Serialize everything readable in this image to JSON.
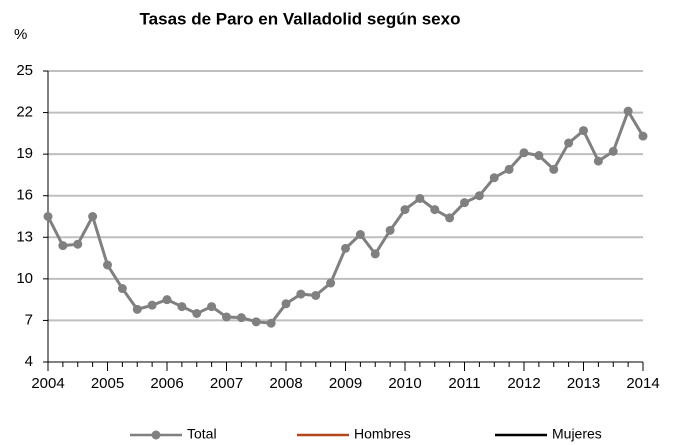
{
  "chart_data": {
    "type": "line",
    "title": "Tasas de Paro en Valladolid según sexo",
    "y_label": "%",
    "x": [
      2004,
      2004.25,
      2004.5,
      2004.75,
      2005,
      2005.25,
      2005.5,
      2005.75,
      2006,
      2006.25,
      2006.5,
      2006.75,
      2007,
      2007.25,
      2007.5,
      2007.75,
      2008,
      2008.25,
      2008.5,
      2008.75,
      2009,
      2009.25,
      2009.5,
      2009.75,
      2010,
      2010.25,
      2010.5,
      2010.75,
      2011,
      2011.25,
      2011.5,
      2011.75,
      2012,
      2012.25,
      2012.5,
      2012.75,
      2013,
      2013.25,
      2013.5,
      2013.75,
      2014
    ],
    "series": [
      {
        "name": "Total",
        "color": "#808080",
        "values": [
          14.5,
          12.4,
          12.5,
          14.5,
          11.0,
          9.3,
          7.8,
          8.1,
          8.5,
          8.0,
          7.5,
          8.0,
          7.25,
          7.2,
          6.9,
          6.8,
          8.2,
          8.9,
          8.8,
          9.7,
          12.2,
          13.2,
          11.8,
          13.5,
          15.0,
          15.8,
          15.0,
          14.4,
          15.5,
          16.0,
          17.3,
          17.9,
          19.1,
          18.9,
          17.9,
          19.8,
          20.7,
          18.5,
          19.2,
          22.1,
          20.3
        ]
      },
      {
        "name": "Hombres",
        "color": "#b5451b",
        "values": [
          null,
          null,
          null,
          null,
          null,
          null,
          null,
          null,
          null,
          null,
          null,
          null,
          null,
          null,
          null,
          null,
          null,
          null,
          null,
          null,
          null,
          null,
          null,
          null,
          null,
          null,
          null,
          null,
          null,
          null,
          null,
          null,
          null,
          null,
          null,
          null,
          null,
          null,
          null,
          null,
          null
        ]
      },
      {
        "name": "Mujeres",
        "color": "#000000",
        "values": [
          null,
          null,
          null,
          null,
          null,
          null,
          null,
          null,
          null,
          null,
          null,
          null,
          null,
          null,
          null,
          null,
          null,
          null,
          null,
          null,
          null,
          null,
          null,
          null,
          null,
          null,
          null,
          null,
          null,
          null,
          null,
          null,
          null,
          null,
          null,
          null,
          null,
          null,
          null,
          null,
          null
        ]
      }
    ],
    "xlim": [
      2004,
      2014
    ],
    "xticks": [
      2004,
      2005,
      2006,
      2007,
      2008,
      2009,
      2010,
      2011,
      2012,
      2013,
      2014
    ],
    "ylim": [
      4,
      25
    ],
    "yticks": [
      4,
      7,
      10,
      13,
      16,
      19,
      22,
      25
    ],
    "grid": true,
    "legend": "bottom"
  }
}
